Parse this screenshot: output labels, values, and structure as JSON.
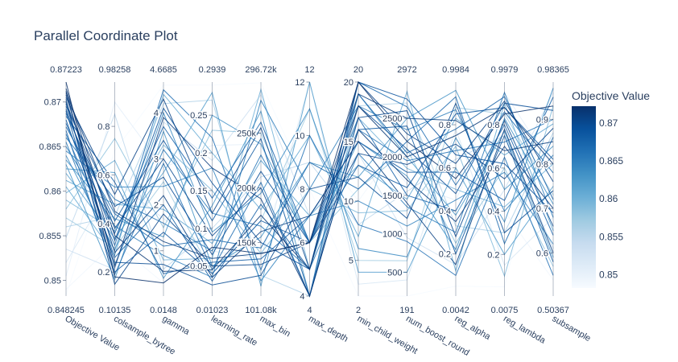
{
  "chart_data": {
    "type": "parallel_coordinates",
    "title": "Parallel Coordinate Plot",
    "axes": [
      {
        "name": "Objective Value",
        "min": 0.848245,
        "max": 0.87223,
        "min_label": "0.848245",
        "max_label": "0.87223",
        "ticks": [
          {
            "v": 0.85,
            "label": "0.85"
          },
          {
            "v": 0.855,
            "label": "0.855"
          },
          {
            "v": 0.86,
            "label": "0.86"
          },
          {
            "v": 0.865,
            "label": "0.865"
          },
          {
            "v": 0.87,
            "label": "0.87"
          }
        ]
      },
      {
        "name": "colsample_bytree",
        "min": 0.10135,
        "max": 0.98258,
        "min_label": "0.10135",
        "max_label": "0.98258",
        "ticks": [
          {
            "v": 0.2,
            "label": "0.2"
          },
          {
            "v": 0.4,
            "label": "0.4"
          },
          {
            "v": 0.6,
            "label": "0.6"
          },
          {
            "v": 0.8,
            "label": "0.8"
          }
        ]
      },
      {
        "name": "gamma",
        "min": 0.0148,
        "max": 4.6685,
        "min_label": "0.0148",
        "max_label": "4.6685",
        "ticks": [
          {
            "v": 1,
            "label": "1"
          },
          {
            "v": 2,
            "label": "2"
          },
          {
            "v": 3,
            "label": "3"
          },
          {
            "v": 4,
            "label": "4"
          }
        ]
      },
      {
        "name": "learning_rate",
        "min": 0.01023,
        "max": 0.2939,
        "min_label": "0.01023",
        "max_label": "0.2939",
        "ticks": [
          {
            "v": 0.05,
            "label": "0.05"
          },
          {
            "v": 0.1,
            "label": "0.1"
          },
          {
            "v": 0.15,
            "label": "0.15"
          },
          {
            "v": 0.2,
            "label": "0.2"
          },
          {
            "v": 0.25,
            "label": "0.25"
          }
        ]
      },
      {
        "name": "max_bin",
        "min": 101080,
        "max": 296720,
        "min_label": "101.08k",
        "max_label": "296.72k",
        "ticks": [
          {
            "v": 150000,
            "label": "150k"
          },
          {
            "v": 200000,
            "label": "200k"
          },
          {
            "v": 250000,
            "label": "250k"
          }
        ]
      },
      {
        "name": "max_depth",
        "min": 4,
        "max": 12,
        "min_label": "4",
        "max_label": "12",
        "ticks": [
          {
            "v": 4,
            "label": "4"
          },
          {
            "v": 6,
            "label": "6"
          },
          {
            "v": 8,
            "label": "8"
          },
          {
            "v": 10,
            "label": "10"
          },
          {
            "v": 12,
            "label": "12"
          }
        ]
      },
      {
        "name": "min_child_weight",
        "min": 2,
        "max": 20,
        "min_label": "2",
        "max_label": "20",
        "ticks": [
          {
            "v": 5,
            "label": "5"
          },
          {
            "v": 10,
            "label": "10"
          },
          {
            "v": 15,
            "label": "15"
          },
          {
            "v": 20,
            "label": "20"
          }
        ]
      },
      {
        "name": "num_boost_round",
        "min": 191,
        "max": 2972,
        "min_label": "191",
        "max_label": "2972",
        "ticks": [
          {
            "v": 500,
            "label": "500"
          },
          {
            "v": 1000,
            "label": "1000"
          },
          {
            "v": 1500,
            "label": "1500"
          },
          {
            "v": 2000,
            "label": "2000"
          },
          {
            "v": 2500,
            "label": "2500"
          }
        ]
      },
      {
        "name": "reg_alpha",
        "min": 0.0042,
        "max": 0.9984,
        "min_label": "0.0042",
        "max_label": "0.9984",
        "ticks": [
          {
            "v": 0.2,
            "label": "0.2"
          },
          {
            "v": 0.4,
            "label": "0.4"
          },
          {
            "v": 0.6,
            "label": "0.6"
          },
          {
            "v": 0.8,
            "label": "0.8"
          }
        ]
      },
      {
        "name": "reg_lambda",
        "min": 0.0075,
        "max": 0.9979,
        "min_label": "0.0075",
        "max_label": "0.9979",
        "ticks": [
          {
            "v": 0.2,
            "label": "0.2"
          },
          {
            "v": 0.4,
            "label": "0.4"
          },
          {
            "v": 0.6,
            "label": "0.6"
          },
          {
            "v": 0.8,
            "label": "0.8"
          }
        ]
      },
      {
        "name": "subsample",
        "min": 0.50367,
        "max": 0.98365,
        "min_label": "0.50367",
        "max_label": "0.98365",
        "ticks": [
          {
            "v": 0.6,
            "label": "0.6"
          },
          {
            "v": 0.7,
            "label": "0.7"
          },
          {
            "v": 0.8,
            "label": "0.8"
          },
          {
            "v": 0.9,
            "label": "0.9"
          }
        ]
      }
    ],
    "colorbar": {
      "title": "Objective Value",
      "colorscale": "Blues",
      "min": 0.848245,
      "max": 0.87223,
      "ticks": [
        {
          "v": 0.85,
          "label": "0.85"
        },
        {
          "v": 0.855,
          "label": "0.855"
        },
        {
          "v": 0.86,
          "label": "0.86"
        },
        {
          "v": 0.865,
          "label": "0.865"
        },
        {
          "v": 0.87,
          "label": "0.87"
        }
      ],
      "low_color": "#f7fbff",
      "high_color": "#08306b"
    },
    "lines": [
      [
        0.87223,
        0.18,
        0.3,
        0.075,
        140000,
        6,
        20,
        2200,
        0.55,
        0.85,
        0.93
      ],
      [
        0.8715,
        0.35,
        0.55,
        0.045,
        175000,
        5,
        18,
        2000,
        0.75,
        0.88,
        0.8
      ],
      [
        0.8712,
        0.22,
        3.9,
        0.18,
        190000,
        4,
        16,
        1700,
        0.35,
        0.7,
        0.7
      ],
      [
        0.871,
        0.45,
        1.2,
        0.06,
        140000,
        6,
        19,
        2500,
        0.82,
        0.68,
        0.85
      ],
      [
        0.8708,
        0.28,
        2.2,
        0.035,
        160000,
        7,
        15,
        1400,
        0.15,
        0.78,
        0.6
      ],
      [
        0.8705,
        0.52,
        4.3,
        0.12,
        255000,
        5,
        20,
        2300,
        0.62,
        0.91,
        0.76
      ],
      [
        0.8703,
        0.15,
        1.8,
        0.05,
        130000,
        6,
        14,
        1900,
        0.71,
        0.55,
        0.88
      ],
      [
        0.87,
        0.38,
        3.0,
        0.09,
        200000,
        4,
        17,
        2600,
        0.28,
        0.82,
        0.66
      ],
      [
        0.8698,
        0.24,
        0.7,
        0.025,
        120000,
        8,
        12,
        1200,
        0.9,
        0.3,
        0.74
      ],
      [
        0.8695,
        0.47,
        2.6,
        0.065,
        215000,
        6,
        18,
        2100,
        0.48,
        0.9,
        0.92
      ],
      [
        0.8692,
        0.33,
        4.1,
        0.16,
        150000,
        5,
        20,
        2750,
        0.66,
        0.62,
        0.69
      ],
      [
        0.869,
        0.2,
        1.4,
        0.04,
        170000,
        6,
        13,
        1600,
        0.85,
        0.88,
        0.81
      ],
      [
        0.8687,
        0.41,
        3.4,
        0.11,
        245000,
        4,
        16,
        2400,
        0.2,
        0.75,
        0.58
      ],
      [
        0.8684,
        0.57,
        0.5,
        0.055,
        135000,
        7,
        15,
        1800,
        0.58,
        0.45,
        0.95
      ],
      [
        0.868,
        0.26,
        2.0,
        0.03,
        185000,
        5,
        19,
        2050,
        0.78,
        0.93,
        0.72
      ],
      [
        0.8676,
        0.36,
        3.7,
        0.14,
        260000,
        6,
        17,
        1500,
        0.4,
        0.8,
        0.64
      ],
      [
        0.8672,
        0.44,
        1.1,
        0.085,
        145000,
        9,
        11,
        2200,
        0.93,
        0.25,
        0.86
      ],
      [
        0.8668,
        0.19,
        2.9,
        0.045,
        205000,
        4,
        20,
        2650,
        0.52,
        0.86,
        0.78
      ],
      [
        0.8664,
        0.31,
        4.5,
        0.22,
        125000,
        10,
        8,
        900,
        0.1,
        0.65,
        0.55
      ],
      [
        0.866,
        0.5,
        1.6,
        0.07,
        230000,
        6,
        16,
        1950,
        0.68,
        0.72,
        0.9
      ],
      [
        0.8655,
        0.23,
        3.2,
        0.12,
        165000,
        5,
        14,
        1350,
        0.3,
        0.95,
        0.68
      ],
      [
        0.865,
        0.39,
        0.9,
        0.035,
        280000,
        8,
        18,
        2350,
        0.87,
        0.4,
        0.82
      ],
      [
        0.8645,
        0.55,
        2.4,
        0.18,
        115000,
        7,
        10,
        1100,
        0.45,
        0.58,
        0.62
      ],
      [
        0.864,
        0.29,
        4.0,
        0.095,
        195000,
        11,
        6,
        700,
        0.74,
        0.35,
        0.97
      ],
      [
        0.8635,
        0.42,
        1.3,
        0.25,
        240000,
        6,
        15,
        1750,
        0.22,
        0.83,
        0.71
      ],
      [
        0.863,
        0.17,
        3.6,
        0.05,
        155000,
        9,
        12,
        2500,
        0.96,
        0.5,
        0.84
      ],
      [
        0.8625,
        0.61,
        0.4,
        0.13,
        270000,
        4,
        19,
        2000,
        0.38,
        0.77,
        0.59
      ],
      [
        0.862,
        0.34,
        2.7,
        0.28,
        110000,
        12,
        4,
        500,
        0.6,
        0.2,
        0.75
      ],
      [
        0.8612,
        0.48,
        1.9,
        0.08,
        225000,
        7,
        13,
        1450,
        0.83,
        0.66,
        0.89
      ],
      [
        0.8605,
        0.27,
        4.4,
        0.2,
        180000,
        10,
        7,
        2850,
        0.12,
        0.9,
        0.65
      ],
      [
        0.8598,
        0.66,
        0.8,
        0.06,
        290000,
        5,
        17,
        1850,
        0.5,
        0.42,
        0.8
      ],
      [
        0.859,
        0.37,
        3.3,
        0.15,
        140000,
        8,
        9,
        1300,
        0.7,
        0.1,
        0.93
      ],
      [
        0.858,
        0.75,
        1.5,
        0.23,
        250000,
        6,
        11,
        2100,
        0.25,
        0.6,
        0.57
      ],
      [
        0.857,
        0.3,
        2.5,
        0.04,
        170000,
        11,
        5,
        650,
        0.88,
        0.85,
        0.73
      ],
      [
        0.856,
        0.43,
        4.2,
        0.27,
        120000,
        4,
        18,
        2700,
        0.33,
        0.3,
        0.87
      ],
      [
        0.8548,
        0.85,
        0.6,
        0.1,
        210000,
        9,
        8,
        1550,
        0.64,
        0.75,
        0.61
      ],
      [
        0.8535,
        0.21,
        3.8,
        0.19,
        285000,
        7,
        14,
        950,
        0.15,
        0.5,
        0.96
      ],
      [
        0.852,
        0.58,
        1.7,
        0.07,
        135000,
        12,
        3,
        400,
        0.78,
        0.15,
        0.68
      ],
      [
        0.8505,
        0.9,
        2.8,
        0.21,
        240000,
        5,
        16,
        1650,
        0.45,
        0.95,
        0.79
      ],
      [
        0.849,
        0.32,
        0.3,
        0.12,
        160000,
        10,
        10,
        2300,
        0.92,
        0.4,
        0.54
      ],
      [
        0.8484,
        0.7,
        4.6,
        0.29,
        296000,
        8,
        2,
        191,
        0.05,
        0.05,
        0.98
      ]
    ]
  }
}
